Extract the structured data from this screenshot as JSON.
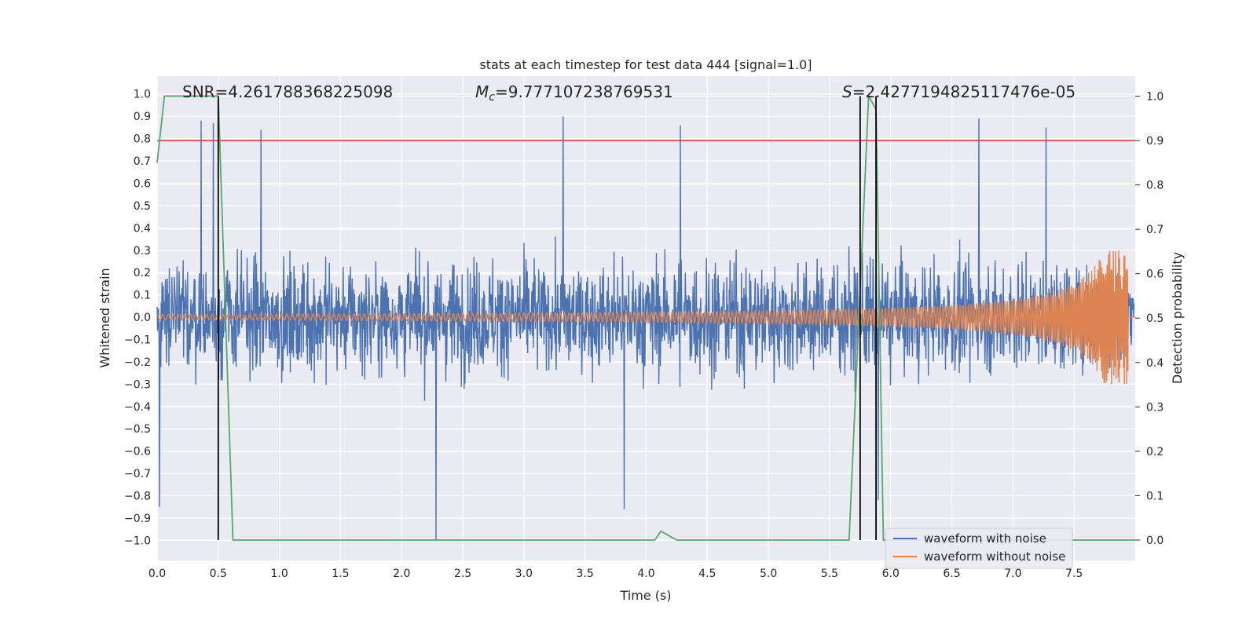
{
  "chart_data": {
    "type": "line",
    "title": "stats at each timestep for test data 444 [signal=1.0]",
    "xlabel": "Time (s)",
    "ylabel": "Whitened strain",
    "y2label": "Detection probability",
    "xlim": [
      0.0,
      8.0
    ],
    "ylim": [
      -1.09,
      1.08
    ],
    "y2lim": [
      -0.046,
      1.045
    ],
    "xticks": [
      "0.0",
      "0.5",
      "1.0",
      "1.5",
      "2.0",
      "2.5",
      "3.0",
      "3.5",
      "4.0",
      "4.5",
      "5.0",
      "5.5",
      "6.0",
      "6.5",
      "7.0",
      "7.5"
    ],
    "yticks": [
      "1.0",
      "0.9",
      "0.8",
      "0.7",
      "0.6",
      "0.5",
      "0.4",
      "0.3",
      "0.2",
      "0.1",
      "0.0",
      "−0.1",
      "−0.2",
      "−0.3",
      "−0.4",
      "−0.5",
      "−0.6",
      "−0.7",
      "−0.8",
      "−0.9",
      "−1.0"
    ],
    "y2ticks": [
      "1.0",
      "0.9",
      "0.8",
      "0.7",
      "0.6",
      "0.5",
      "0.4",
      "0.3",
      "0.2",
      "0.1",
      "0.0"
    ],
    "grid": true,
    "legend": {
      "location": "lower right",
      "entries": [
        "waveform with noise",
        "waveform without noise"
      ]
    },
    "annotations": {
      "snr": "SNR=4.261788368225098",
      "mc_symbol": "M",
      "mc_sub": "c",
      "mc_value": "=9.777107238769531",
      "s_symbol": "S",
      "s_value": "=2.4277194825117476e-05"
    },
    "colors": {
      "noise": "#4c72b0",
      "clean": "#dd8452",
      "probability": "#55a868",
      "threshold": "#c44e52",
      "markers": "#000000",
      "background": "#eaeaf2"
    },
    "series": [
      {
        "name": "waveform with noise",
        "axis": "left",
        "style": "dense noise, amplitude about ±0.45 with peaks near 0.9 and −1.0",
        "x_range": [
          0.0,
          7.99
        ],
        "peaks": [
          {
            "x": 0.02,
            "y": -0.85
          },
          {
            "x": 0.36,
            "y": 0.88
          },
          {
            "x": 0.46,
            "y": 0.87
          },
          {
            "x": 0.85,
            "y": 0.84
          },
          {
            "x": 2.28,
            "y": -1.0
          },
          {
            "x": 3.32,
            "y": 0.9
          },
          {
            "x": 3.82,
            "y": -0.86
          },
          {
            "x": 4.28,
            "y": 0.86
          },
          {
            "x": 5.9,
            "y": -0.82
          },
          {
            "x": 6.72,
            "y": 0.89
          },
          {
            "x": 7.27,
            "y": 0.85
          }
        ]
      },
      {
        "name": "waveform without noise",
        "axis": "left",
        "style": "chirp, amplitude growing from 0.01 to 0.3 near the end",
        "x_range": [
          0.0,
          7.94
        ]
      },
      {
        "name": "detection probability",
        "axis": "right",
        "x": [
          0.0,
          0.06,
          0.12,
          0.5,
          0.62,
          4.07,
          4.12,
          4.25,
          5.66,
          5.82,
          5.88,
          5.94,
          8.0
        ],
        "y": [
          0.85,
          1.0,
          1.0,
          1.0,
          0.0,
          0.0,
          0.02,
          0.0,
          0.0,
          1.0,
          0.97,
          0.0,
          0.0
        ]
      }
    ],
    "threshold": 0.9,
    "vertical_markers": [
      0.5,
      5.75,
      5.88
    ]
  }
}
